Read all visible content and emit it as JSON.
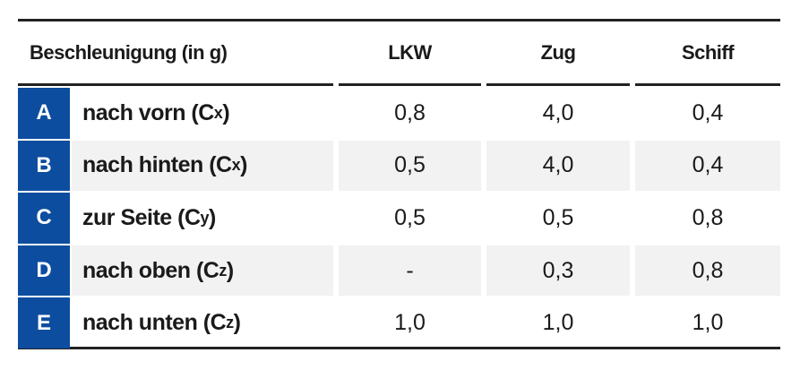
{
  "table": {
    "header": [
      "Beschleunigung (in g)",
      "LKW",
      "Zug",
      "Schiff"
    ],
    "rows": [
      {
        "letter": "A",
        "label": "nach vorn (C",
        "subscript": "x",
        "suffix": ")",
        "values": [
          "0,8",
          "4,0",
          "0,4"
        ]
      },
      {
        "letter": "B",
        "label": "nach hinten (C",
        "subscript": "x",
        "suffix": ")",
        "values": [
          "0,5",
          "4,0",
          "0,4"
        ]
      },
      {
        "letter": "C",
        "label": "zur Seite (C",
        "subscript": "y",
        "suffix": ")",
        "values": [
          "0,5",
          "0,5",
          "0,8"
        ]
      },
      {
        "letter": "D",
        "label": "nach oben (C",
        "subscript": "z",
        "suffix": ")",
        "values": [
          "-",
          "0,3",
          "0,8"
        ]
      },
      {
        "letter": "E",
        "label": "nach unten (C",
        "subscript": "z",
        "suffix": ")",
        "values": [
          "1,0",
          "1,0",
          "1,0"
        ]
      }
    ]
  }
}
